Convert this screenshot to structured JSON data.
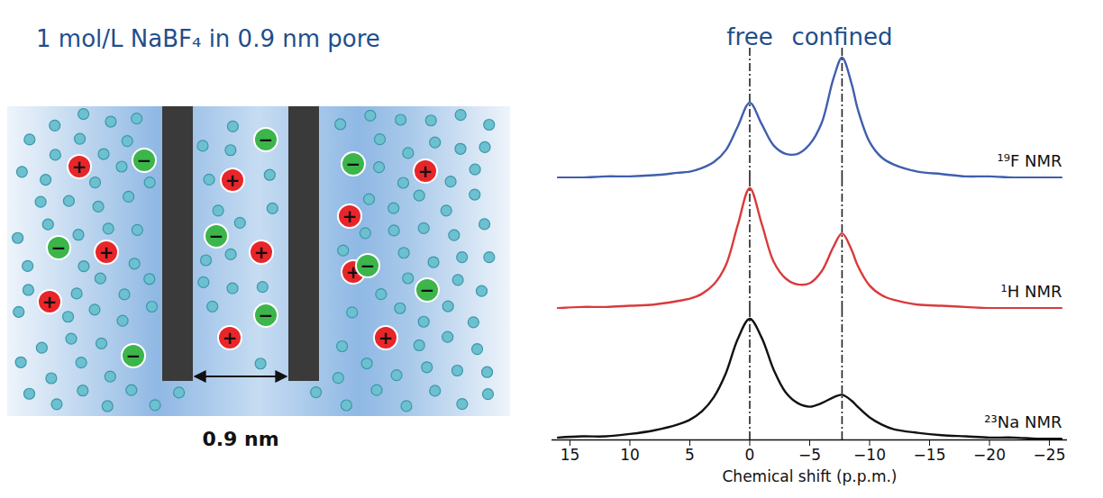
{
  "diagram": {
    "title": "1 mol/L NaBF₄ in 0.9 nm pore",
    "width_label": "0.9 nm",
    "cation_label": "+",
    "anion_label": "−"
  },
  "chart_data": {
    "type": "line",
    "x_label": "Chemical shift (p.p.m.)",
    "x": [
      16,
      14,
      12,
      10,
      8,
      6,
      5,
      4,
      3,
      2,
      1,
      0,
      -1,
      -2,
      -3,
      -4,
      -5,
      -6,
      -7,
      -7.7,
      -8.5,
      -9,
      -10,
      -11,
      -12,
      -14,
      -16,
      -18,
      -20,
      -22,
      -24,
      -26
    ],
    "xlim": [
      16.5,
      -26.5
    ],
    "xticks": [
      15,
      10,
      5,
      0,
      -5,
      -10,
      -15,
      -20,
      -25
    ],
    "ylim": [
      0,
      1.1
    ],
    "tick_labels": "x",
    "annotations": [
      {
        "text": "free",
        "x": 0
      },
      {
        "text": "confined",
        "x": -7.7
      }
    ],
    "series": [
      {
        "name": "¹⁹F NMR",
        "color": "#3f5fae",
        "values": [
          0.01,
          0.01,
          0.02,
          0.02,
          0.03,
          0.05,
          0.06,
          0.09,
          0.14,
          0.24,
          0.44,
          0.64,
          0.46,
          0.28,
          0.21,
          0.21,
          0.29,
          0.47,
          0.85,
          1.02,
          0.8,
          0.59,
          0.31,
          0.18,
          0.12,
          0.06,
          0.04,
          0.02,
          0.02,
          0.01,
          0.01,
          0.01
        ]
      },
      {
        "name": "¹H NMR",
        "color": "#d93a3c",
        "values": [
          0.01,
          0.02,
          0.02,
          0.03,
          0.04,
          0.07,
          0.09,
          0.13,
          0.21,
          0.37,
          0.71,
          1.02,
          0.72,
          0.4,
          0.26,
          0.21,
          0.22,
          0.32,
          0.53,
          0.64,
          0.5,
          0.37,
          0.2,
          0.12,
          0.08,
          0.04,
          0.03,
          0.02,
          0.01,
          0.01,
          0.01,
          0.01
        ]
      },
      {
        "name": "²³Na NMR",
        "color": "#111111",
        "values": [
          0.02,
          0.03,
          0.03,
          0.05,
          0.08,
          0.13,
          0.17,
          0.24,
          0.36,
          0.56,
          0.85,
          1.02,
          0.86,
          0.59,
          0.4,
          0.31,
          0.28,
          0.31,
          0.36,
          0.38,
          0.33,
          0.28,
          0.19,
          0.13,
          0.09,
          0.06,
          0.04,
          0.03,
          0.02,
          0.02,
          0.01,
          0.01
        ]
      }
    ]
  }
}
